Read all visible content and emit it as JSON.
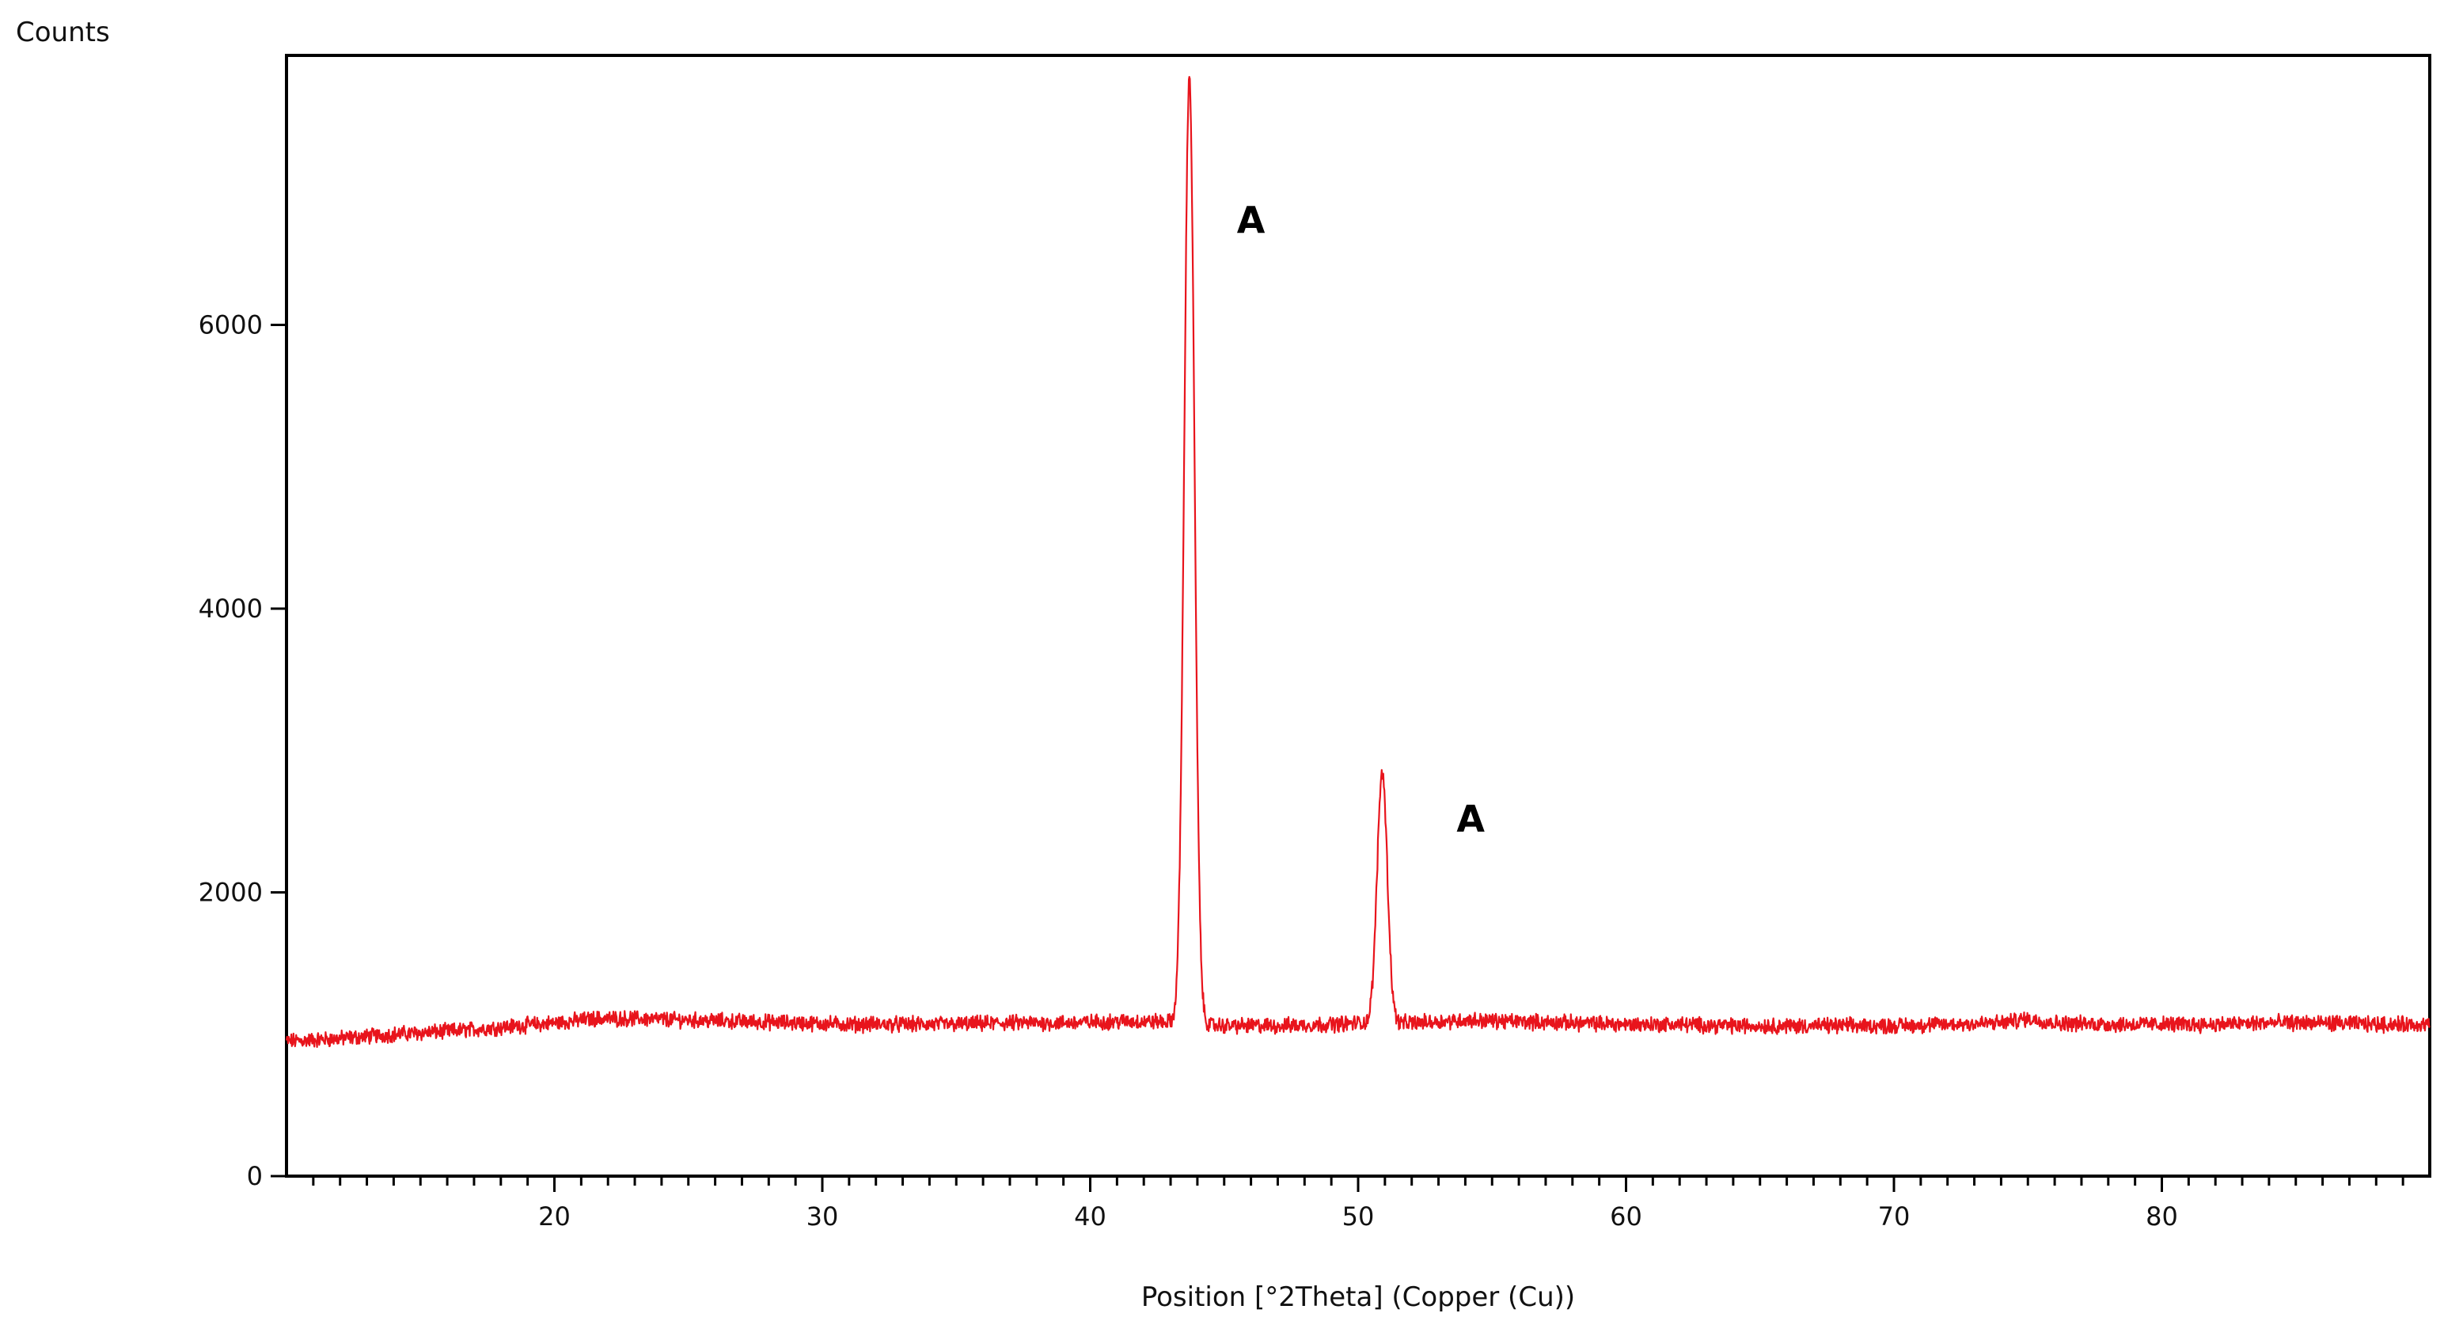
{
  "chart_data": {
    "type": "line",
    "title": "",
    "xlabel": "Position [°2Theta] (Copper (Cu))",
    "ylabel": "Counts",
    "xlim": [
      10,
      90
    ],
    "ylim": [
      0,
      7900
    ],
    "x_ticks": [
      20,
      30,
      40,
      50,
      60,
      70,
      80
    ],
    "y_ticks": [
      0,
      2000,
      4000,
      6000
    ],
    "grid": false,
    "legend": "none",
    "line_color": "#e8141c",
    "series": [
      {
        "baseline": [
          [
            10,
            950
          ],
          [
            12,
            970
          ],
          [
            14,
            1000
          ],
          [
            16,
            1020
          ],
          [
            18,
            1050
          ],
          [
            20,
            1080
          ],
          [
            21.5,
            1110
          ],
          [
            23,
            1110
          ],
          [
            25,
            1100
          ],
          [
            27,
            1090
          ],
          [
            29,
            1080
          ],
          [
            31,
            1070
          ],
          [
            33,
            1070
          ],
          [
            35,
            1070
          ],
          [
            37,
            1080
          ],
          [
            39,
            1080
          ],
          [
            41,
            1090
          ],
          [
            42.5,
            1090
          ],
          [
            45,
            1060
          ],
          [
            47,
            1060
          ],
          [
            49,
            1070
          ],
          [
            50,
            1080
          ],
          [
            52,
            1080
          ],
          [
            54,
            1100
          ],
          [
            56,
            1090
          ],
          [
            58,
            1080
          ],
          [
            60,
            1070
          ],
          [
            62,
            1070
          ],
          [
            64,
            1060
          ],
          [
            66,
            1060
          ],
          [
            68,
            1060
          ],
          [
            70,
            1060
          ],
          [
            72,
            1070
          ],
          [
            74,
            1080
          ],
          [
            75,
            1110
          ],
          [
            76,
            1080
          ],
          [
            78,
            1070
          ],
          [
            80,
            1070
          ],
          [
            82,
            1070
          ],
          [
            84,
            1080
          ],
          [
            86,
            1080
          ],
          [
            88,
            1070
          ],
          [
            90,
            1070
          ]
        ],
        "peaks": [
          {
            "x": 43.7,
            "counts": 7750,
            "fwhm": 0.45
          },
          {
            "x": 50.9,
            "counts": 2850,
            "fwhm": 0.45
          }
        ]
      }
    ],
    "annotations": [
      {
        "text": "A",
        "x": 46.0,
        "y": 6650
      },
      {
        "text": "A",
        "x": 54.2,
        "y": 2430
      }
    ]
  }
}
